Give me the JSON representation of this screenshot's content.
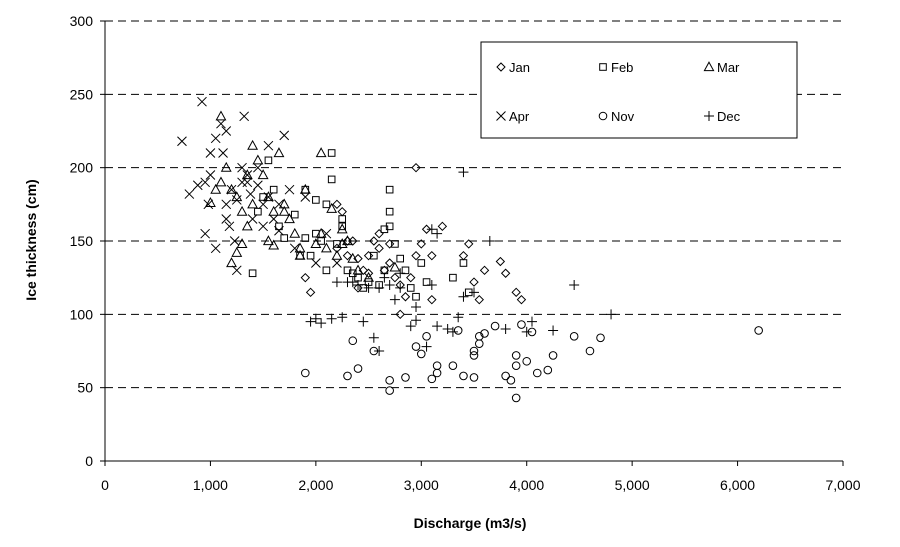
{
  "chart_data": {
    "type": "scatter",
    "title": "",
    "xlabel": "Discharge (m3/s)",
    "ylabel": "Ice thickness (cm)",
    "xlim": [
      0,
      7000
    ],
    "ylim": [
      0,
      300
    ],
    "xticks": [
      0,
      1000,
      2000,
      3000,
      4000,
      5000,
      6000,
      7000
    ],
    "xtick_labels": [
      "0",
      "1,000",
      "2,000",
      "3,000",
      "4,000",
      "5,000",
      "6,000",
      "7,000"
    ],
    "yticks": [
      0,
      50,
      100,
      150,
      200,
      250,
      300
    ],
    "ytick_labels": [
      "0",
      "50",
      "100",
      "150",
      "200",
      "250",
      "300"
    ],
    "grid": "horizontal dashed",
    "legend_position": "top-right",
    "series": [
      {
        "name": "Jan",
        "marker": "diamond",
        "points": [
          [
            1900,
            125
          ],
          [
            1950,
            115
          ],
          [
            2200,
            175
          ],
          [
            2250,
            170
          ],
          [
            2300,
            150
          ],
          [
            2400,
            138
          ],
          [
            2450,
            130
          ],
          [
            2500,
            128
          ],
          [
            2550,
            150
          ],
          [
            2600,
            145
          ],
          [
            2650,
            130
          ],
          [
            2700,
            135
          ],
          [
            2750,
            125
          ],
          [
            2800,
            100
          ],
          [
            2850,
            112
          ],
          [
            2900,
            125
          ],
          [
            2950,
            140
          ],
          [
            3000,
            148
          ],
          [
            3050,
            158
          ],
          [
            3100,
            140
          ],
          [
            3100,
            110
          ],
          [
            3200,
            160
          ],
          [
            2950,
            200
          ],
          [
            3400,
            140
          ],
          [
            3450,
            148
          ],
          [
            3500,
            122
          ],
          [
            3550,
            110
          ],
          [
            3600,
            130
          ],
          [
            3750,
            136
          ],
          [
            3800,
            128
          ],
          [
            3900,
            115
          ],
          [
            3950,
            110
          ],
          [
            2400,
            118
          ],
          [
            2350,
            150
          ],
          [
            2600,
            155
          ],
          [
            2700,
            148
          ],
          [
            2800,
            120
          ],
          [
            2500,
            140
          ],
          [
            2300,
            140
          ],
          [
            2200,
            145
          ]
        ]
      },
      {
        "name": "Feb",
        "marker": "square",
        "points": [
          [
            1400,
            128
          ],
          [
            1450,
            170
          ],
          [
            1500,
            180
          ],
          [
            1550,
            205
          ],
          [
            1600,
            185
          ],
          [
            1650,
            160
          ],
          [
            1700,
            152
          ],
          [
            1800,
            168
          ],
          [
            1850,
            140
          ],
          [
            1900,
            185
          ],
          [
            1900,
            152
          ],
          [
            2000,
            155
          ],
          [
            2000,
            178
          ],
          [
            2050,
            150
          ],
          [
            2100,
            175
          ],
          [
            2150,
            210
          ],
          [
            2150,
            192
          ],
          [
            2200,
            148
          ],
          [
            2250,
            160
          ],
          [
            2300,
            130
          ],
          [
            2350,
            128
          ],
          [
            2400,
            125
          ],
          [
            2450,
            118
          ],
          [
            2500,
            122
          ],
          [
            2550,
            140
          ],
          [
            2600,
            120
          ],
          [
            2650,
            158
          ],
          [
            2650,
            130
          ],
          [
            2700,
            185
          ],
          [
            2700,
            170
          ],
          [
            2750,
            148
          ],
          [
            2800,
            138
          ],
          [
            2850,
            130
          ],
          [
            2900,
            118
          ],
          [
            2950,
            112
          ],
          [
            3000,
            135
          ],
          [
            3050,
            122
          ],
          [
            3300,
            125
          ],
          [
            3400,
            135
          ],
          [
            3450,
            115
          ],
          [
            2250,
            165
          ],
          [
            1950,
            140
          ],
          [
            2100,
            130
          ],
          [
            2700,
            160
          ]
        ]
      },
      {
        "name": "Mar",
        "marker": "triangle",
        "points": [
          [
            1050,
            185
          ],
          [
            1100,
            235
          ],
          [
            1150,
            200
          ],
          [
            1200,
            185
          ],
          [
            1250,
            180
          ],
          [
            1300,
            170
          ],
          [
            1350,
            160
          ],
          [
            1400,
            215
          ],
          [
            1450,
            205
          ],
          [
            1500,
            195
          ],
          [
            1550,
            180
          ],
          [
            1600,
            170
          ],
          [
            1650,
            210
          ],
          [
            1700,
            175
          ],
          [
            1750,
            165
          ],
          [
            1800,
            155
          ],
          [
            1850,
            140
          ],
          [
            1900,
            185
          ],
          [
            2000,
            148
          ],
          [
            2050,
            210
          ],
          [
            2100,
            145
          ],
          [
            2150,
            172
          ],
          [
            2200,
            140
          ],
          [
            2250,
            158
          ],
          [
            2300,
            150
          ],
          [
            2350,
            138
          ],
          [
            2400,
            130
          ],
          [
            2500,
            125
          ],
          [
            2750,
            132
          ],
          [
            1200,
            135
          ],
          [
            1300,
            148
          ],
          [
            1400,
            175
          ],
          [
            1600,
            147
          ],
          [
            1700,
            170
          ],
          [
            1000,
            176
          ],
          [
            1250,
            142
          ],
          [
            1550,
            150
          ],
          [
            1850,
            145
          ],
          [
            2050,
            155
          ],
          [
            2250,
            148
          ],
          [
            1100,
            190
          ],
          [
            1350,
            195
          ]
        ]
      },
      {
        "name": "Apr",
        "marker": "x",
        "points": [
          [
            730,
            218
          ],
          [
            800,
            182
          ],
          [
            880,
            188
          ],
          [
            920,
            245
          ],
          [
            950,
            190
          ],
          [
            980,
            175
          ],
          [
            1000,
            195
          ],
          [
            1050,
            220
          ],
          [
            1100,
            230
          ],
          [
            1120,
            210
          ],
          [
            1150,
            225
          ],
          [
            1180,
            160
          ],
          [
            1200,
            185
          ],
          [
            1230,
            150
          ],
          [
            1250,
            178
          ],
          [
            1300,
            190
          ],
          [
            1320,
            235
          ],
          [
            1350,
            195
          ],
          [
            1380,
            182
          ],
          [
            1400,
            165
          ],
          [
            1450,
            188
          ],
          [
            1500,
            175
          ],
          [
            1550,
            180
          ],
          [
            1600,
            165
          ],
          [
            1650,
            157
          ],
          [
            1700,
            222
          ],
          [
            1750,
            185
          ],
          [
            1800,
            145
          ],
          [
            1900,
            180
          ],
          [
            2000,
            135
          ],
          [
            2100,
            155
          ],
          [
            2200,
            135
          ],
          [
            1000,
            210
          ],
          [
            1050,
            145
          ],
          [
            1150,
            165
          ],
          [
            1250,
            130
          ],
          [
            1350,
            190
          ],
          [
            1450,
            200
          ],
          [
            1550,
            215
          ],
          [
            1650,
            175
          ],
          [
            950,
            155
          ],
          [
            1150,
            175
          ],
          [
            1300,
            200
          ],
          [
            1500,
            160
          ]
        ]
      },
      {
        "name": "Nov",
        "marker": "circle",
        "points": [
          [
            1900,
            60
          ],
          [
            2300,
            58
          ],
          [
            2350,
            82
          ],
          [
            2400,
            63
          ],
          [
            2550,
            75
          ],
          [
            2700,
            55
          ],
          [
            2700,
            48
          ],
          [
            2850,
            57
          ],
          [
            2950,
            78
          ],
          [
            3000,
            73
          ],
          [
            3050,
            85
          ],
          [
            3100,
            56
          ],
          [
            3150,
            60
          ],
          [
            3150,
            65
          ],
          [
            3300,
            65
          ],
          [
            3350,
            89
          ],
          [
            3400,
            58
          ],
          [
            3500,
            72
          ],
          [
            3500,
            75
          ],
          [
            3500,
            57
          ],
          [
            3550,
            80
          ],
          [
            3550,
            85
          ],
          [
            3600,
            87
          ],
          [
            3700,
            92
          ],
          [
            3800,
            58
          ],
          [
            3850,
            55
          ],
          [
            3900,
            72
          ],
          [
            3900,
            65
          ],
          [
            3900,
            43
          ],
          [
            3950,
            93
          ],
          [
            4000,
            68
          ],
          [
            4050,
            88
          ],
          [
            4100,
            60
          ],
          [
            4200,
            62
          ],
          [
            4250,
            72
          ],
          [
            4450,
            85
          ],
          [
            4600,
            75
          ],
          [
            4700,
            84
          ],
          [
            6200,
            89
          ]
        ]
      },
      {
        "name": "Dec",
        "marker": "plus",
        "points": [
          [
            1950,
            95
          ],
          [
            2000,
            97
          ],
          [
            2050,
            94
          ],
          [
            2150,
            97
          ],
          [
            2200,
            122
          ],
          [
            2250,
            98
          ],
          [
            2300,
            122
          ],
          [
            2350,
            122
          ],
          [
            2400,
            120
          ],
          [
            2450,
            95
          ],
          [
            2500,
            118
          ],
          [
            2550,
            84
          ],
          [
            2600,
            75
          ],
          [
            2650,
            125
          ],
          [
            2700,
            120
          ],
          [
            2750,
            110
          ],
          [
            2800,
            118
          ],
          [
            2900,
            92
          ],
          [
            2950,
            105
          ],
          [
            3050,
            78
          ],
          [
            3100,
            120
          ],
          [
            3150,
            92
          ],
          [
            3150,
            155
          ],
          [
            3250,
            90
          ],
          [
            3300,
            88
          ],
          [
            3350,
            98
          ],
          [
            3400,
            112
          ],
          [
            3500,
            115
          ],
          [
            3400,
            197
          ],
          [
            3650,
            150
          ],
          [
            3800,
            90
          ],
          [
            4000,
            88
          ],
          [
            4050,
            95
          ],
          [
            4250,
            89
          ],
          [
            4450,
            120
          ],
          [
            4800,
            100
          ],
          [
            2600,
            118
          ],
          [
            2800,
            128
          ],
          [
            3100,
            158
          ],
          [
            2950,
            96
          ]
        ]
      }
    ]
  }
}
